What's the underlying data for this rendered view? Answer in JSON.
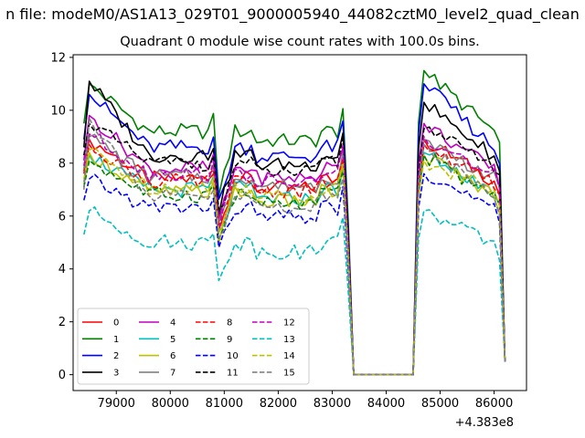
{
  "chart_data": {
    "type": "line",
    "suptitle": "n file: modeM0/AS1A13_029T01_9000005940_44082cztM0_level2_quad_clean",
    "title": "Quadrant 0 module wise count rates with 100.0s bins.",
    "xlabel": "",
    "ylabel": "",
    "offset_text": "+4.383e8",
    "xlim": [
      78200,
      86600
    ],
    "ylim": [
      -0.6,
      12.1
    ],
    "xticks": [
      79000,
      80000,
      81000,
      82000,
      83000,
      84000,
      85000,
      86000
    ],
    "yticks": [
      0,
      2,
      4,
      6,
      8,
      10,
      12
    ],
    "grid": false,
    "legend": {
      "placement": "lower-left",
      "columns": 4
    },
    "segments": [
      {
        "x_start": 78400,
        "x_end": 83200,
        "step": 100
      },
      {
        "x_start": 84600,
        "x_end": 86200,
        "step": 100
      }
    ],
    "gap_x": [
      83300,
      83400,
      84500
    ],
    "series": [
      {
        "name": "0",
        "color": "#ff0000",
        "dash": "solid",
        "base": 7.4,
        "early": 8.9,
        "peak": 8.9
      },
      {
        "name": "1",
        "color": "#008000",
        "dash": "solid",
        "base": 9.2,
        "early": 11.0,
        "peak": 11.5
      },
      {
        "name": "2",
        "color": "#0000ff",
        "dash": "solid",
        "base": 8.6,
        "early": 10.6,
        "peak": 11.0
      },
      {
        "name": "3",
        "color": "#000000",
        "dash": "solid",
        "base": 8.3,
        "early": 11.1,
        "peak": 10.3
      },
      {
        "name": "4",
        "color": "#bf00bf",
        "dash": "solid",
        "base": 7.8,
        "early": 9.8,
        "peak": 9.5
      },
      {
        "name": "5",
        "color": "#00bfbf",
        "dash": "solid",
        "base": 7.0,
        "early": 8.3,
        "peak": 8.4
      },
      {
        "name": "6",
        "color": "#bfbf00",
        "dash": "solid",
        "base": 6.9,
        "early": 8.4,
        "peak": 8.3
      },
      {
        "name": "7",
        "color": "#808080",
        "dash": "solid",
        "base": 7.5,
        "early": 9.0,
        "peak": 8.9
      },
      {
        "name": "8",
        "color": "#ff0000",
        "dash": "dashed",
        "base": 7.3,
        "early": 8.7,
        "peak": 8.7
      },
      {
        "name": "9",
        "color": "#008000",
        "dash": "dashed",
        "base": 6.8,
        "early": 8.1,
        "peak": 8.3
      },
      {
        "name": "10",
        "color": "#0000ff",
        "dash": "dashed",
        "base": 6.3,
        "early": 7.4,
        "peak": 7.6
      },
      {
        "name": "11",
        "color": "#000000",
        "dash": "dashed",
        "base": 8.0,
        "early": 9.5,
        "peak": 9.3
      },
      {
        "name": "12",
        "color": "#bf00bf",
        "dash": "dashed",
        "base": 7.6,
        "early": 9.1,
        "peak": 9.0
      },
      {
        "name": "13",
        "color": "#00bfbf",
        "dash": "dashed",
        "base": 5.0,
        "early": 6.2,
        "peak": 6.2
      },
      {
        "name": "14",
        "color": "#bfbf00",
        "dash": "dashed",
        "base": 7.1,
        "early": 8.5,
        "peak": 8.1
      },
      {
        "name": "15",
        "color": "#808080",
        "dash": "dashed",
        "base": 6.7,
        "early": 9.7,
        "peak": 8.7
      }
    ]
  }
}
